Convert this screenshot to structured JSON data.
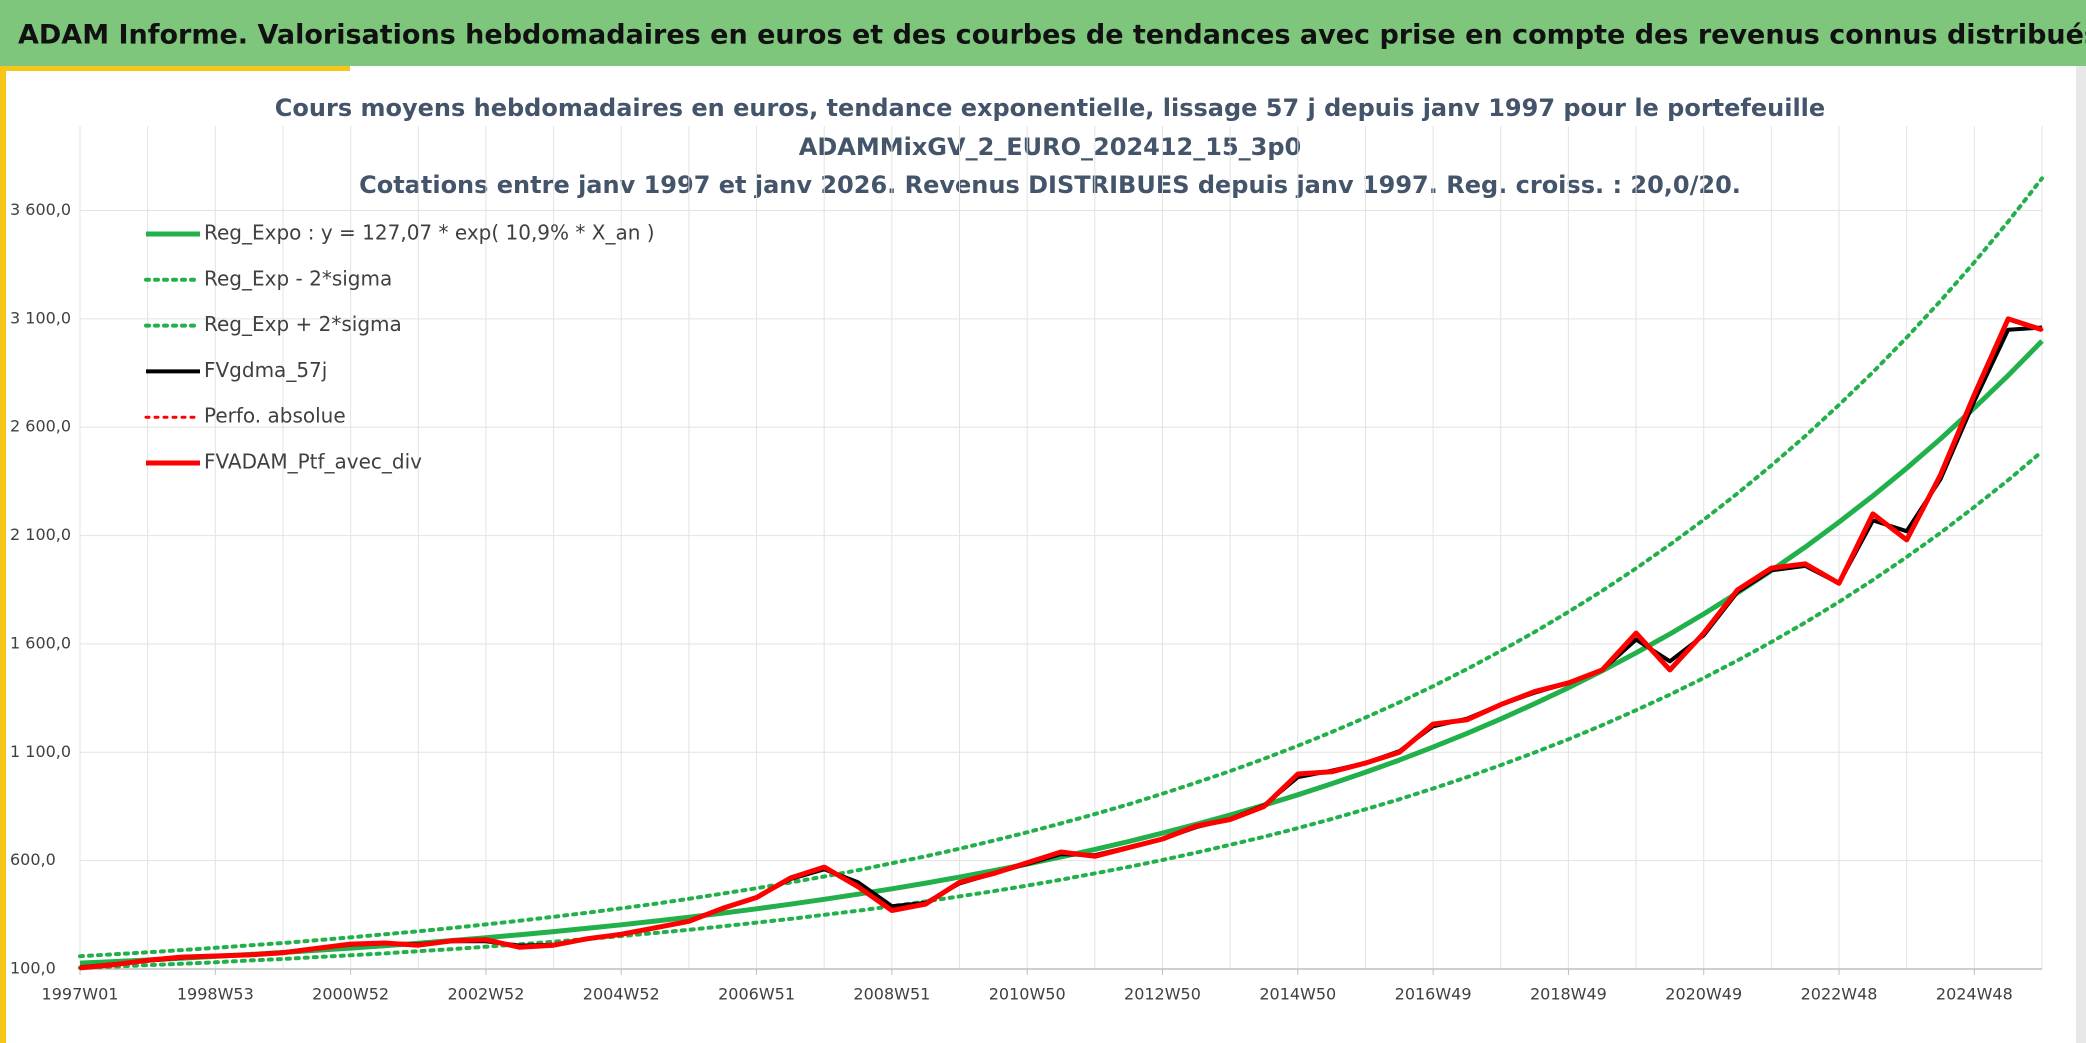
{
  "header": {
    "title": "ADAM Informe. Valorisations hebdomadaires en euros et des courbes de tendances avec prise en compte des revenus connus distribués"
  },
  "chart_data": {
    "type": "line",
    "title": [
      "Cours moyens hebdomadaires en euros, tendance exponentielle, lissage 57 j depuis janv 1997 pour le portefeuille",
      "ADAMMixGV_2_EURO_202412_15_3p0",
      "Cotations entre janv 1997 et janv 2026. Revenus DISTRIBUES depuis janv 1997. Reg. croiss. : 20,0/20."
    ],
    "categories": [
      "1997W01",
      null,
      null,
      null,
      "1998W53",
      null,
      null,
      null,
      "2000W52",
      null,
      null,
      null,
      "2002W52",
      null,
      null,
      null,
      "2004W52",
      null,
      null,
      null,
      "2006W51",
      null,
      null,
      null,
      "2008W51",
      null,
      null,
      null,
      "2010W50",
      null,
      null,
      null,
      "2012W50",
      null,
      null,
      null,
      "2014W50",
      null,
      null,
      null,
      "2016W49",
      null,
      null,
      null,
      "2018W49",
      null,
      null,
      null,
      "2020W49",
      null,
      null,
      null,
      "2022W48",
      null,
      null,
      null,
      "2024W48",
      null,
      null
    ],
    "ylim": [
      100,
      3990
    ],
    "yticks": [
      {
        "value": 100,
        "label": "100,0"
      },
      {
        "value": 600,
        "label": "600,0"
      },
      {
        "value": 1100,
        "label": "1 100,0"
      },
      {
        "value": 1600,
        "label": "1 600,0"
      },
      {
        "value": 2100,
        "label": "2 100,0"
      },
      {
        "value": 2600,
        "label": "2 600,0"
      },
      {
        "value": 3100,
        "label": "3 100,0"
      },
      {
        "value": 3600,
        "label": "3 600,0"
      }
    ],
    "grid": true,
    "legend": "top-left",
    "series": [
      {
        "name": "Reg_Expo : y = 127,07 * exp( 10,9% *  X_an )",
        "color": "#22b04b",
        "line_style": "solid",
        "width": 5,
        "values": [
          127.1,
          134.2,
          141.7,
          149.7,
          158.1,
          166.9,
          176.3,
          186.2,
          196.6,
          207.6,
          219.2,
          231.5,
          244.5,
          258.2,
          272.6,
          287.9,
          304.0,
          321.0,
          339.0,
          358.0,
          378.0,
          399.1,
          421.5,
          445.1,
          470.0,
          496.3,
          524.1,
          553.5,
          584.5,
          617.2,
          651.8,
          688.3,
          726.9,
          767.6,
          810.6,
          856.0,
          903.9,
          954.6,
          1008,
          1064,
          1124,
          1187,
          1254,
          1324,
          1398,
          1476,
          1559,
          1646,
          1738,
          1836,
          1939,
          2047,
          2162,
          2283,
          2411,
          2546,
          2689,
          2839,
          2998
        ]
      },
      {
        "name": "Reg_Exp - 2*sigma",
        "color": "#22b04b",
        "line_style": "dotted",
        "width": 4,
        "values": [
          105,
          111,
          118,
          124,
          131,
          139,
          146,
          155,
          163,
          172,
          182,
          192,
          203,
          214,
          226,
          239,
          252,
          266,
          281,
          297,
          314,
          331,
          350,
          369,
          390,
          412,
          435,
          459,
          485,
          512,
          541,
          571,
          603,
          637,
          673,
          710,
          750,
          792,
          837,
          883,
          933,
          985,
          1041,
          1099,
          1160,
          1225,
          1294,
          1366,
          1443,
          1524,
          1609,
          1699,
          1794,
          1895,
          2001,
          2113,
          2232,
          2356,
          2488
        ]
      },
      {
        "name": "Reg_Exp + 2*sigma",
        "color": "#22b04b",
        "line_style": "dotted",
        "width": 4,
        "values": [
          159,
          168,
          177,
          187,
          198,
          209,
          220,
          233,
          246,
          260,
          274,
          289,
          306,
          323,
          341,
          360,
          380,
          401,
          424,
          448,
          473,
          499,
          527,
          556,
          588,
          620,
          655,
          692,
          731,
          772,
          815,
          860,
          909,
          960,
          1013,
          1070,
          1130,
          1193,
          1260,
          1330,
          1405,
          1484,
          1568,
          1655,
          1748,
          1845,
          1949,
          2058,
          2173,
          2295,
          2424,
          2559,
          2703,
          2854,
          3014,
          3183,
          3361,
          3549,
          3748
        ]
      },
      {
        "name": "FVgdma_57j",
        "color": "#000000",
        "line_style": "solid",
        "width": 4,
        "values": [
          108,
          122,
          138,
          152,
          160,
          166,
          177,
          195,
          212,
          218,
          214,
          228,
          228,
          208,
          212,
          238,
          262,
          290,
          322,
          378,
          432,
          515,
          560,
          500,
          390,
          405,
          495,
          540,
          585,
          630,
          625,
          662,
          700,
          755,
          792,
          855,
          985,
          1015,
          1050,
          1105,
          1220,
          1255,
          1320,
          1375,
          1420,
          1480,
          1620,
          1520,
          1640,
          1840,
          1940,
          1960,
          1880,
          2170,
          2120,
          2360,
          2720,
          3050,
          3060
        ]
      },
      {
        "name": "Perfo. absolue",
        "color": "#ff0000",
        "line_style": "dotted",
        "width": 3,
        "values": [
          105,
          120,
          140,
          155,
          160,
          165,
          175,
          195,
          215,
          220,
          210,
          230,
          235,
          200,
          210,
          240,
          260,
          290,
          320,
          380,
          430,
          520,
          570,
          480,
          370,
          400,
          500,
          540,
          590,
          640,
          620,
          660,
          700,
          760,
          790,
          850,
          1000,
          1010,
          1050,
          1100,
          1230,
          1250,
          1320,
          1380,
          1420,
          1480,
          1650,
          1480,
          1650,
          1850,
          1950,
          1970,
          1880,
          2200,
          2080,
          2380,
          2750,
          3100,
          3050
        ]
      },
      {
        "name": "FVADAM_Ptf_avec_div",
        "color": "#ff0000",
        "line_style": "solid",
        "width": 5,
        "values": [
          105,
          120,
          140,
          155,
          160,
          165,
          175,
          195,
          215,
          220,
          210,
          230,
          235,
          200,
          210,
          240,
          260,
          290,
          320,
          380,
          430,
          520,
          570,
          480,
          370,
          400,
          500,
          540,
          590,
          640,
          620,
          660,
          700,
          760,
          790,
          850,
          1000,
          1010,
          1050,
          1100,
          1230,
          1250,
          1320,
          1380,
          1420,
          1480,
          1650,
          1480,
          1650,
          1850,
          1950,
          1970,
          1880,
          2200,
          2080,
          2380,
          2750,
          3100,
          3050
        ]
      }
    ]
  }
}
